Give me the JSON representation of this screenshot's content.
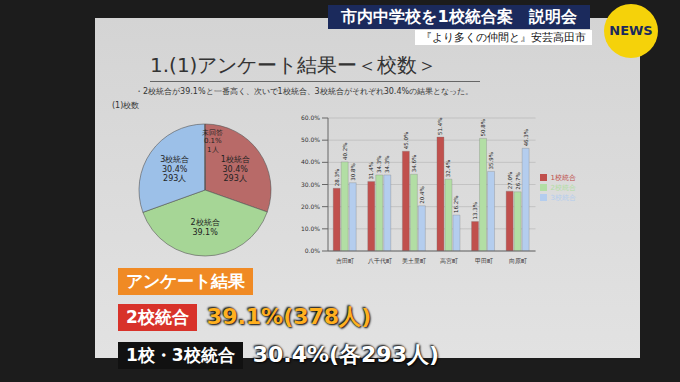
{
  "header": {
    "title": "市内中学校を1校統合案　説明会",
    "subtitle": "『より多くの仲間と』安芸高田市",
    "logo": "NEWS"
  },
  "slide": {
    "title": "1.(1)アンケート結果ー＜校数＞",
    "summary": "・2校統合が39.1%と一番高く、次いで1校統合、3校統合がそれぞれ30.4%の結果となった。"
  },
  "chart_data": [
    {
      "type": "pie",
      "title": "(1)校数",
      "categories": [
        "1校統合",
        "2校統合",
        "3校統合",
        "未回答"
      ],
      "values": [
        30.4,
        39.1,
        30.4,
        0.1
      ],
      "value_labels": [
        "30.4%",
        "39.1%",
        "30.4%",
        "0.1%"
      ],
      "count_labels": [
        "293人",
        null,
        "293人",
        "1人"
      ],
      "colors": [
        "#b86a68",
        "#a6d696",
        "#9cc0e8",
        "#ffffff"
      ],
      "data_labels": true
    },
    {
      "type": "bar",
      "categories": [
        "吉田町",
        "八千代町",
        "美土里町",
        "高宮町",
        "甲田町",
        "向原町"
      ],
      "series": [
        {
          "name": "1校統合",
          "color": "#c0504d",
          "values": [
            28.3,
            31.4,
            45.0,
            51.4,
            13.3,
            27.0
          ],
          "value_labels": [
            "28.3%",
            "31.4%",
            "45.0%",
            "51.4%",
            "13.3%",
            "27.0%"
          ]
        },
        {
          "name": "2校統合",
          "color": "#b2dea4",
          "values": [
            40.2,
            34.3,
            34.6,
            32.4,
            50.8,
            26.7
          ],
          "value_labels": [
            "40.2%",
            "34.3%",
            "34.6%",
            "32.4%",
            "50.8%",
            "26.7%"
          ]
        },
        {
          "name": "3校統合",
          "color": "#b4cdee",
          "values": [
            30.8,
            34.3,
            20.4,
            16.2,
            35.9,
            46.3
          ],
          "value_labels": [
            "30.8%",
            "34.3%",
            "20.4%",
            "16.2%",
            "35.9%",
            "46.3%"
          ]
        }
      ],
      "ylim": [
        0,
        60
      ],
      "yticks": [
        {
          "value": 0,
          "label": "0.0%"
        },
        {
          "value": 10,
          "label": "10.0%"
        },
        {
          "value": 20,
          "label": "20.0%"
        },
        {
          "value": 30,
          "label": "30.0%"
        },
        {
          "value": 40,
          "label": "40.0%"
        },
        {
          "value": 50,
          "label": "50.0%"
        },
        {
          "value": 60,
          "label": "60.0%"
        }
      ],
      "grid": true,
      "legend": "right",
      "data_labels": true
    }
  ],
  "caption": {
    "heading": "アンケート結果",
    "rows": [
      {
        "label": "2校統合",
        "text": "39.1%(378人)"
      },
      {
        "label": "1校・3校統合",
        "text": "30.4%(各293人)"
      }
    ]
  }
}
